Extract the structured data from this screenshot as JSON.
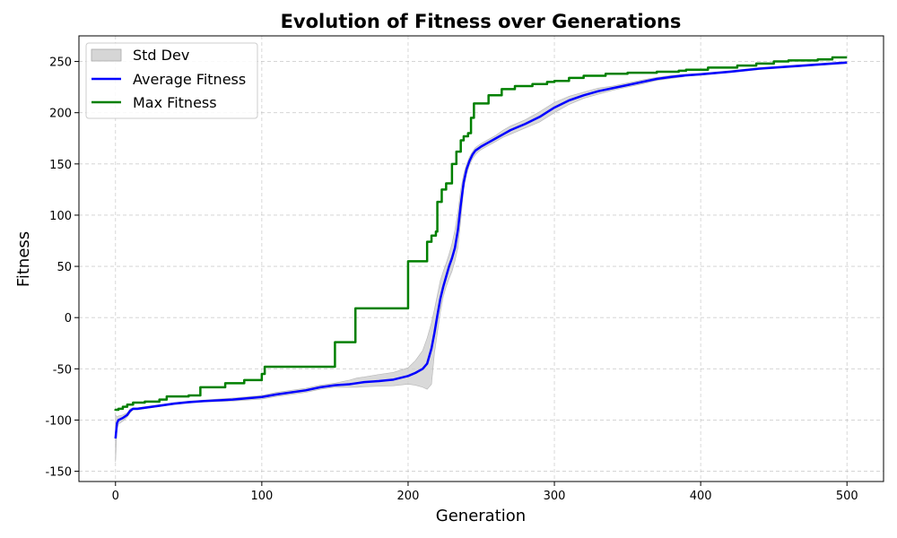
{
  "chart_data": {
    "type": "line",
    "title": "Evolution of Fitness over Generations",
    "xlabel": "Generation",
    "ylabel": "Fitness",
    "xlim": [
      -25,
      525
    ],
    "ylim": [
      -160,
      275
    ],
    "xticks": [
      0,
      100,
      200,
      300,
      400,
      500
    ],
    "yticks": [
      -150,
      -100,
      -50,
      0,
      50,
      100,
      150,
      200,
      250
    ],
    "grid": true,
    "legend_position": "top-left",
    "legend": [
      "Std Dev",
      "Average Fitness",
      "Max Fitness"
    ],
    "series": [
      {
        "name": "Average Fitness",
        "color": "#0000ff",
        "x": [
          0,
          1,
          2,
          5,
          8,
          10,
          12,
          15,
          20,
          30,
          40,
          50,
          60,
          80,
          100,
          110,
          130,
          140,
          150,
          160,
          165,
          170,
          180,
          190,
          200,
          205,
          210,
          213,
          216,
          218,
          220,
          222,
          224,
          226,
          228,
          230,
          232,
          234,
          236,
          238,
          240,
          242,
          244,
          246,
          248,
          250,
          255,
          260,
          265,
          270,
          280,
          290,
          300,
          310,
          320,
          330,
          340,
          350,
          360,
          370,
          380,
          390,
          400,
          420,
          440,
          460,
          480,
          500
        ],
        "y": [
          -118,
          -103,
          -100,
          -98,
          -95,
          -91,
          -89,
          -89,
          -88,
          -86,
          -84,
          -82.5,
          -81.5,
          -80,
          -77.5,
          -75,
          -71,
          -68,
          -66,
          -65,
          -64,
          -63,
          -62,
          -60.5,
          -57,
          -54,
          -50,
          -45,
          -30,
          -15,
          2,
          18,
          30,
          40,
          50,
          58,
          68,
          85,
          110,
          132,
          145,
          153,
          159,
          163,
          165,
          167,
          171,
          175,
          179,
          183,
          189,
          196,
          205,
          212,
          217,
          221,
          224,
          227,
          230,
          233,
          235,
          236.5,
          237.5,
          240,
          243,
          245,
          247,
          249
        ]
      },
      {
        "name": "Max Fitness",
        "color": "#008000",
        "x": [
          0,
          0,
          2,
          2,
          5,
          5,
          8,
          8,
          12,
          12,
          20,
          20,
          30,
          30,
          35,
          35,
          50,
          50,
          58,
          58,
          75,
          75,
          88,
          88,
          100,
          100,
          102,
          102,
          150,
          150,
          164,
          164,
          200,
          200,
          213,
          213,
          216,
          216,
          219,
          219,
          220,
          220,
          223,
          223,
          226,
          226,
          230,
          230,
          233,
          233,
          236,
          236,
          238,
          238,
          241,
          241,
          243,
          243,
          245,
          245,
          255,
          255,
          264,
          264,
          273,
          273,
          285,
          285,
          295,
          295,
          300,
          300,
          310,
          310,
          320,
          320,
          335,
          335,
          350,
          350,
          370,
          370,
          385,
          385,
          390,
          390,
          405,
          405,
          425,
          425,
          438,
          438,
          450,
          450,
          460,
          460,
          480,
          480,
          490,
          490,
          500
        ],
        "y": [
          -91,
          -90,
          -90,
          -89,
          -89,
          -87,
          -87,
          -85,
          -85,
          -83,
          -83,
          -82,
          -82,
          -80,
          -80,
          -77,
          -77,
          -76,
          -76,
          -68,
          -68,
          -64,
          -64,
          -61,
          -61,
          -55,
          -55,
          -48,
          -48,
          -24,
          -24,
          9,
          9,
          55,
          55,
          74,
          74,
          80,
          80,
          84,
          84,
          113,
          113,
          125,
          125,
          131,
          131,
          150,
          150,
          162,
          162,
          173,
          173,
          177,
          177,
          180,
          180,
          195,
          195,
          209,
          209,
          217,
          217,
          223,
          223,
          226,
          226,
          228,
          228,
          230,
          230,
          231,
          231,
          234,
          234,
          236,
          236,
          238,
          238,
          239,
          239,
          240,
          240,
          241,
          241,
          242,
          242,
          244,
          244,
          246,
          246,
          248,
          248,
          250,
          250,
          251,
          251,
          252,
          252,
          254,
          254
        ]
      }
    ],
    "band": {
      "name": "Std Dev",
      "color": "#cccccc",
      "x": [
        0,
        1,
        2,
        5,
        8,
        10,
        12,
        15,
        20,
        30,
        40,
        50,
        60,
        80,
        100,
        110,
        130,
        140,
        150,
        160,
        165,
        170,
        180,
        190,
        200,
        205,
        210,
        213,
        216,
        218,
        220,
        222,
        224,
        226,
        228,
        230,
        232,
        234,
        236,
        238,
        240,
        242,
        244,
        246,
        248,
        250,
        255,
        260,
        265,
        270,
        280,
        290,
        300,
        310,
        320,
        330,
        340,
        350,
        360,
        370,
        380,
        390,
        400,
        420,
        440,
        460,
        480,
        500
      ],
      "upper": [
        -95,
        -97,
        -96,
        -95,
        -93,
        -89,
        -88,
        -88,
        -87,
        -85,
        -83,
        -81.5,
        -80.5,
        -78.5,
        -76,
        -73,
        -69,
        -66,
        -64,
        -61,
        -59,
        -58,
        -55.5,
        -53.5,
        -49,
        -42,
        -32,
        -20,
        -5,
        8,
        22,
        36,
        45,
        53,
        62,
        72,
        85,
        102,
        125,
        140,
        150,
        157,
        162,
        166,
        168,
        170,
        174,
        178,
        183,
        187,
        193,
        201,
        210,
        216,
        220,
        224,
        226,
        229,
        232,
        234.5,
        236.5,
        237.5,
        238.5,
        241,
        244,
        246,
        248,
        250
      ],
      "lower": [
        -141,
        -109,
        -104,
        -101,
        -97,
        -93,
        -90,
        -90,
        -89,
        -87,
        -85,
        -83.5,
        -82.5,
        -81.5,
        -79.5,
        -77,
        -73,
        -70,
        -68,
        -68,
        -68,
        -67.5,
        -67,
        -66.5,
        -65,
        -66,
        -68,
        -70,
        -65,
        -35,
        -15,
        5,
        20,
        30,
        38,
        45,
        55,
        68,
        95,
        125,
        140,
        149,
        155,
        159,
        162,
        164,
        168,
        172,
        176,
        179,
        185,
        191,
        200,
        208,
        214,
        218,
        222,
        225,
        228,
        231.5,
        233.5,
        235.5,
        236.5,
        239,
        242,
        244,
        246,
        248
      ]
    }
  }
}
